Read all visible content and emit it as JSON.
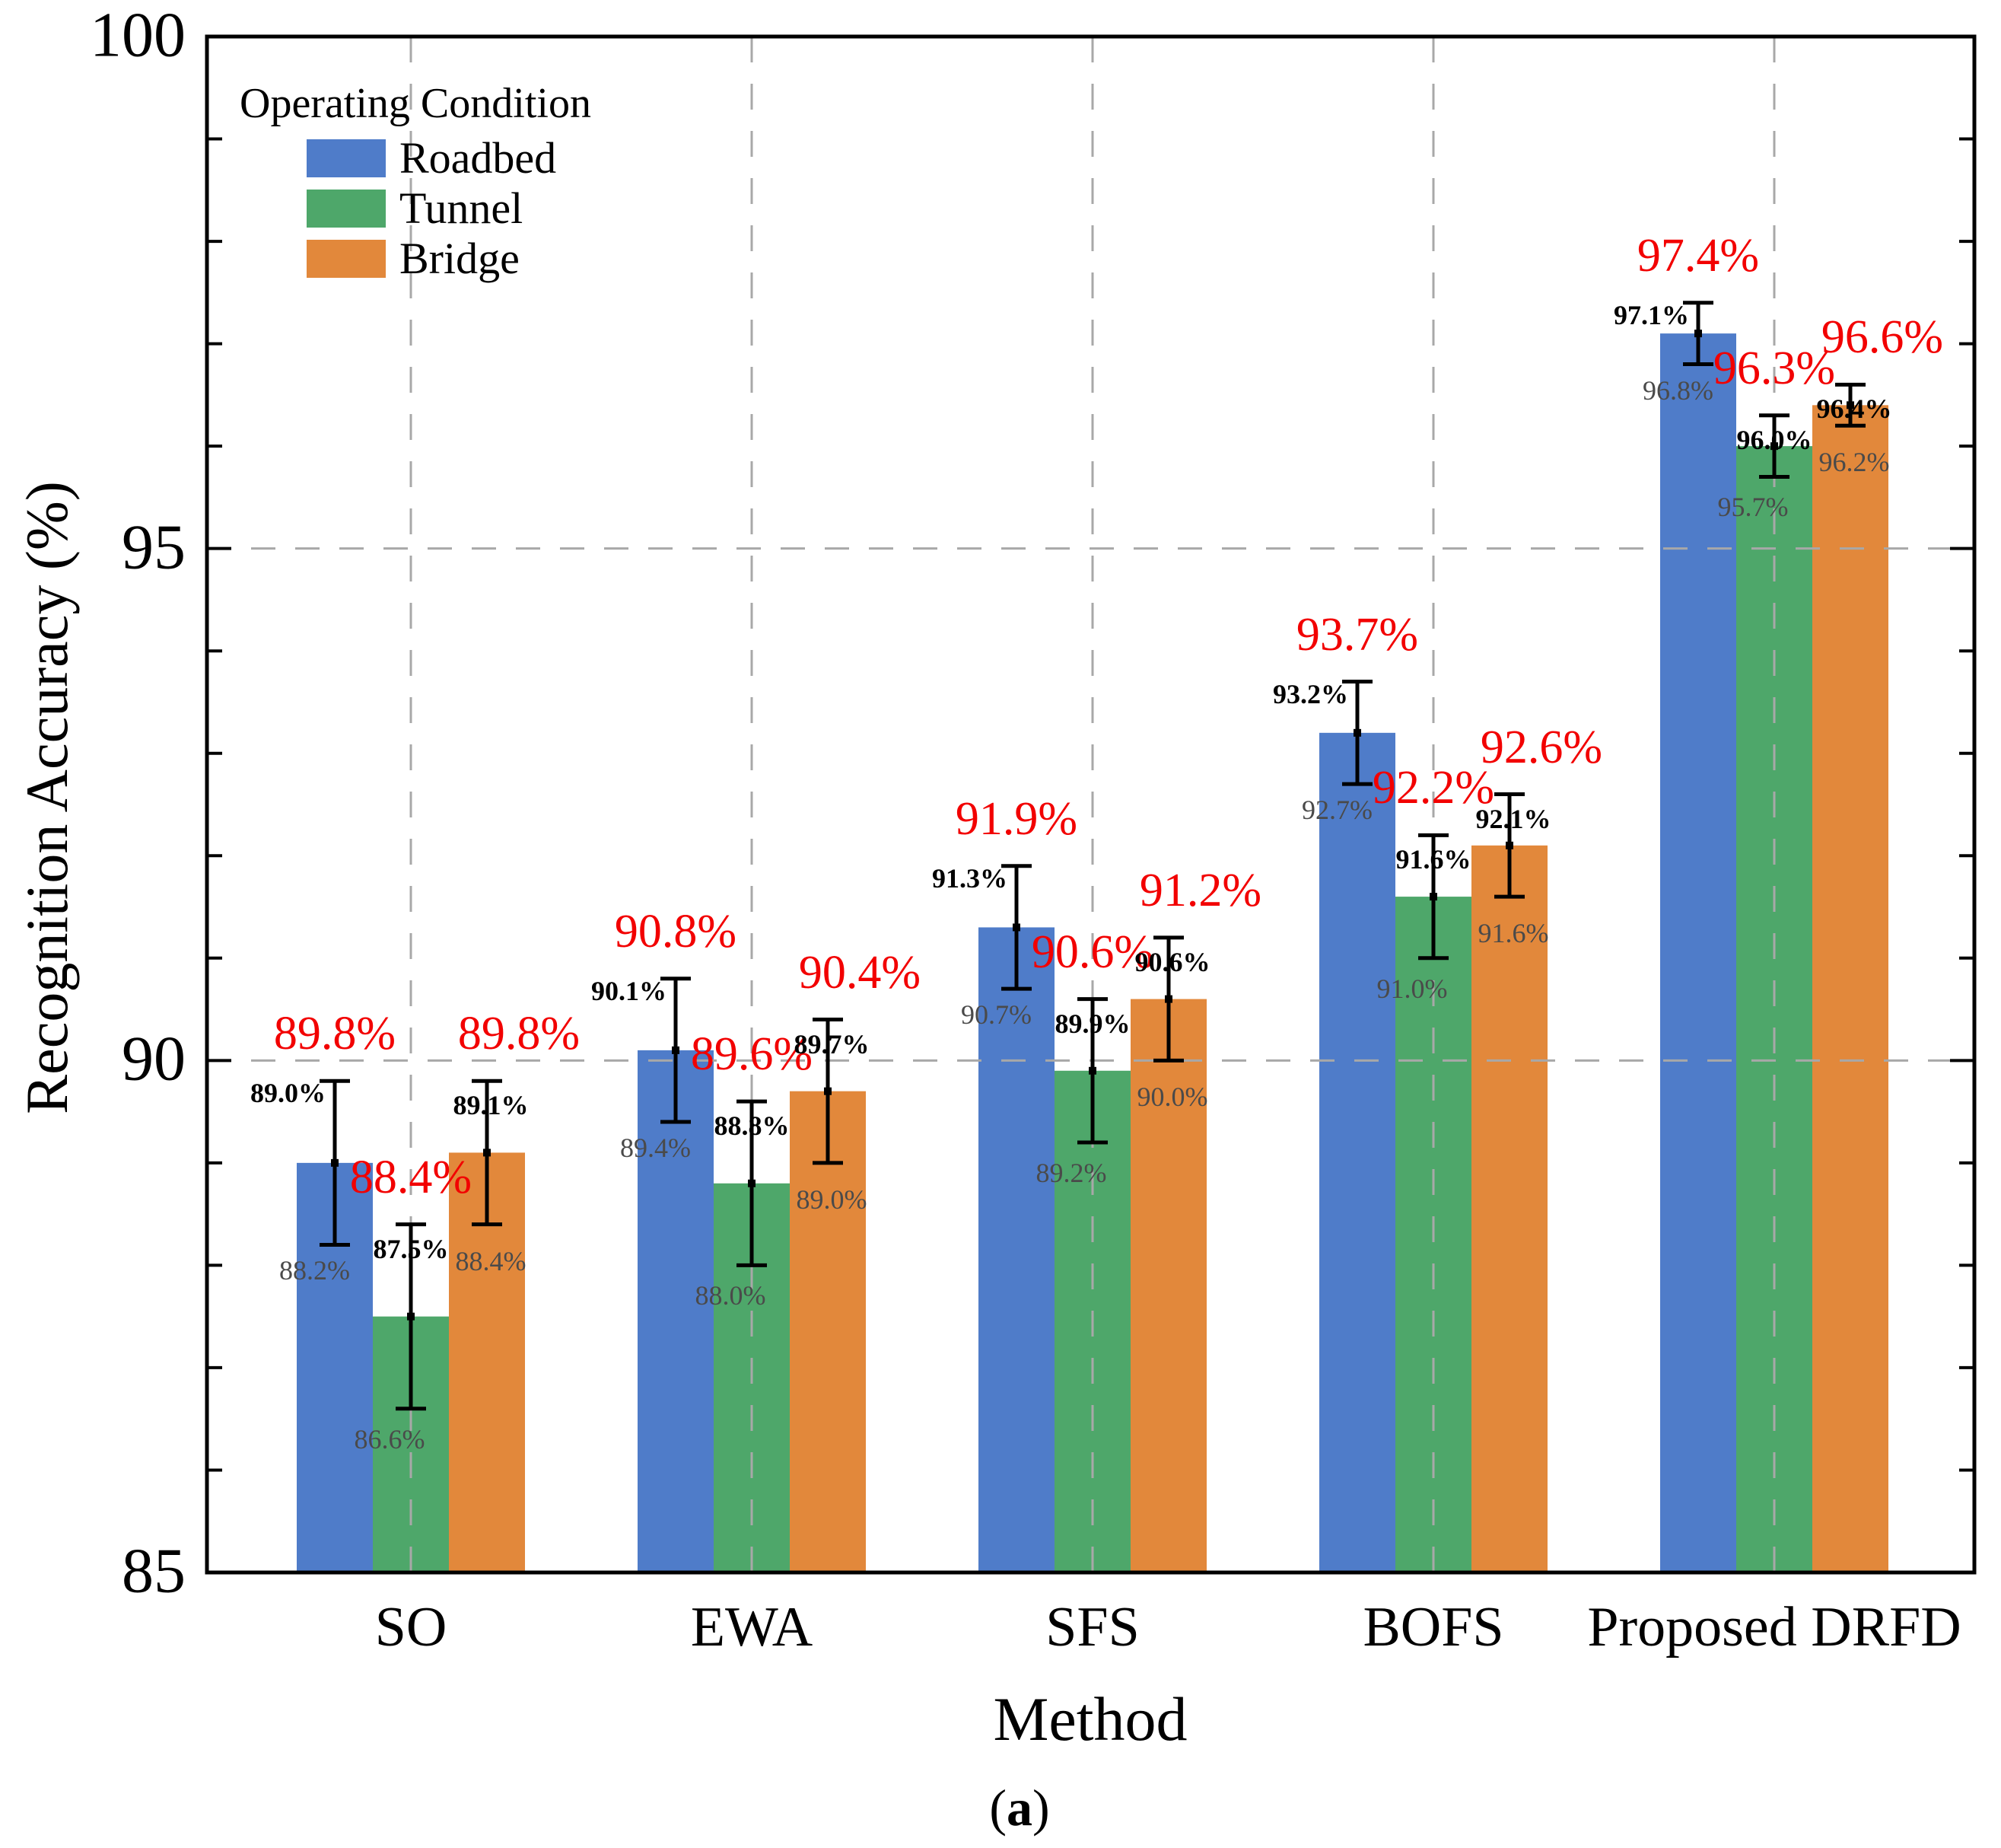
{
  "figure": {
    "caption_open": "(",
    "caption_letter": "a",
    "caption_close": ")"
  },
  "chart_data": {
    "type": "bar",
    "title": "",
    "xlabel": "Method",
    "ylabel": "Recognition Accuracy (%)",
    "ylim": [
      85,
      100
    ],
    "ytick_labels": [
      "100",
      "95",
      "90",
      "85"
    ],
    "ytick_values": [
      100,
      95,
      90,
      85
    ],
    "minor_tick_step": 1,
    "grid": {
      "horizontal_dashed_at": [
        95,
        90
      ],
      "vertical_dashed_at_group_centers": true,
      "style": "dashed gray"
    },
    "legend": {
      "title": "Operating Condition",
      "position": "top-left"
    },
    "categories": [
      "SO",
      "EWA",
      "SFS",
      "BOFS",
      "Proposed DRFD"
    ],
    "series": [
      {
        "name": "Roadbed",
        "color": "#4F7CC9",
        "means": [
          89.0,
          90.1,
          91.3,
          93.2,
          97.1
        ],
        "errors": [
          0.8,
          0.7,
          0.6,
          0.5,
          0.3
        ],
        "max_labels": [
          "89.8%",
          "90.8%",
          "91.9%",
          "93.7%",
          "97.4%"
        ],
        "mean_labels": [
          "89.0%",
          "90.1%",
          "91.3%",
          "93.2%",
          "97.1%"
        ],
        "min_labels": [
          "88.2%",
          "89.4%",
          "90.7%",
          "92.7%",
          "96.8%"
        ]
      },
      {
        "name": "Tunnel",
        "color": "#4EA76A",
        "means": [
          87.5,
          88.8,
          89.9,
          91.6,
          96.0
        ],
        "errors": [
          0.9,
          0.8,
          0.7,
          0.6,
          0.3
        ],
        "max_labels": [
          "88.4%",
          "89.6%",
          "90.6%",
          "92.2%",
          "96.3%"
        ],
        "mean_labels": [
          "87.5%",
          "88.8%",
          "89.9%",
          "91.6%",
          "96.0%"
        ],
        "min_labels": [
          "86.6%",
          "88.0%",
          "89.2%",
          "91.0%",
          "95.7%"
        ]
      },
      {
        "name": "Bridge",
        "color": "#E2883B",
        "means": [
          89.1,
          89.7,
          90.6,
          92.1,
          96.4
        ],
        "errors": [
          0.7,
          0.7,
          0.6,
          0.5,
          0.2
        ],
        "max_labels": [
          "89.8%",
          "90.4%",
          "91.2%",
          "92.6%",
          "96.6%"
        ],
        "mean_labels": [
          "89.1%",
          "89.7%",
          "90.6%",
          "92.1%",
          "96.4%"
        ],
        "min_labels": [
          "88.4%",
          "89.0%",
          "90.0%",
          "91.6%",
          "96.2%"
        ]
      }
    ],
    "label_colors": {
      "max": "#F20000",
      "mean": "#000000",
      "min": "#4A4A4A"
    },
    "axis_color": "#000000",
    "grid_color": "#A8A8A8"
  }
}
